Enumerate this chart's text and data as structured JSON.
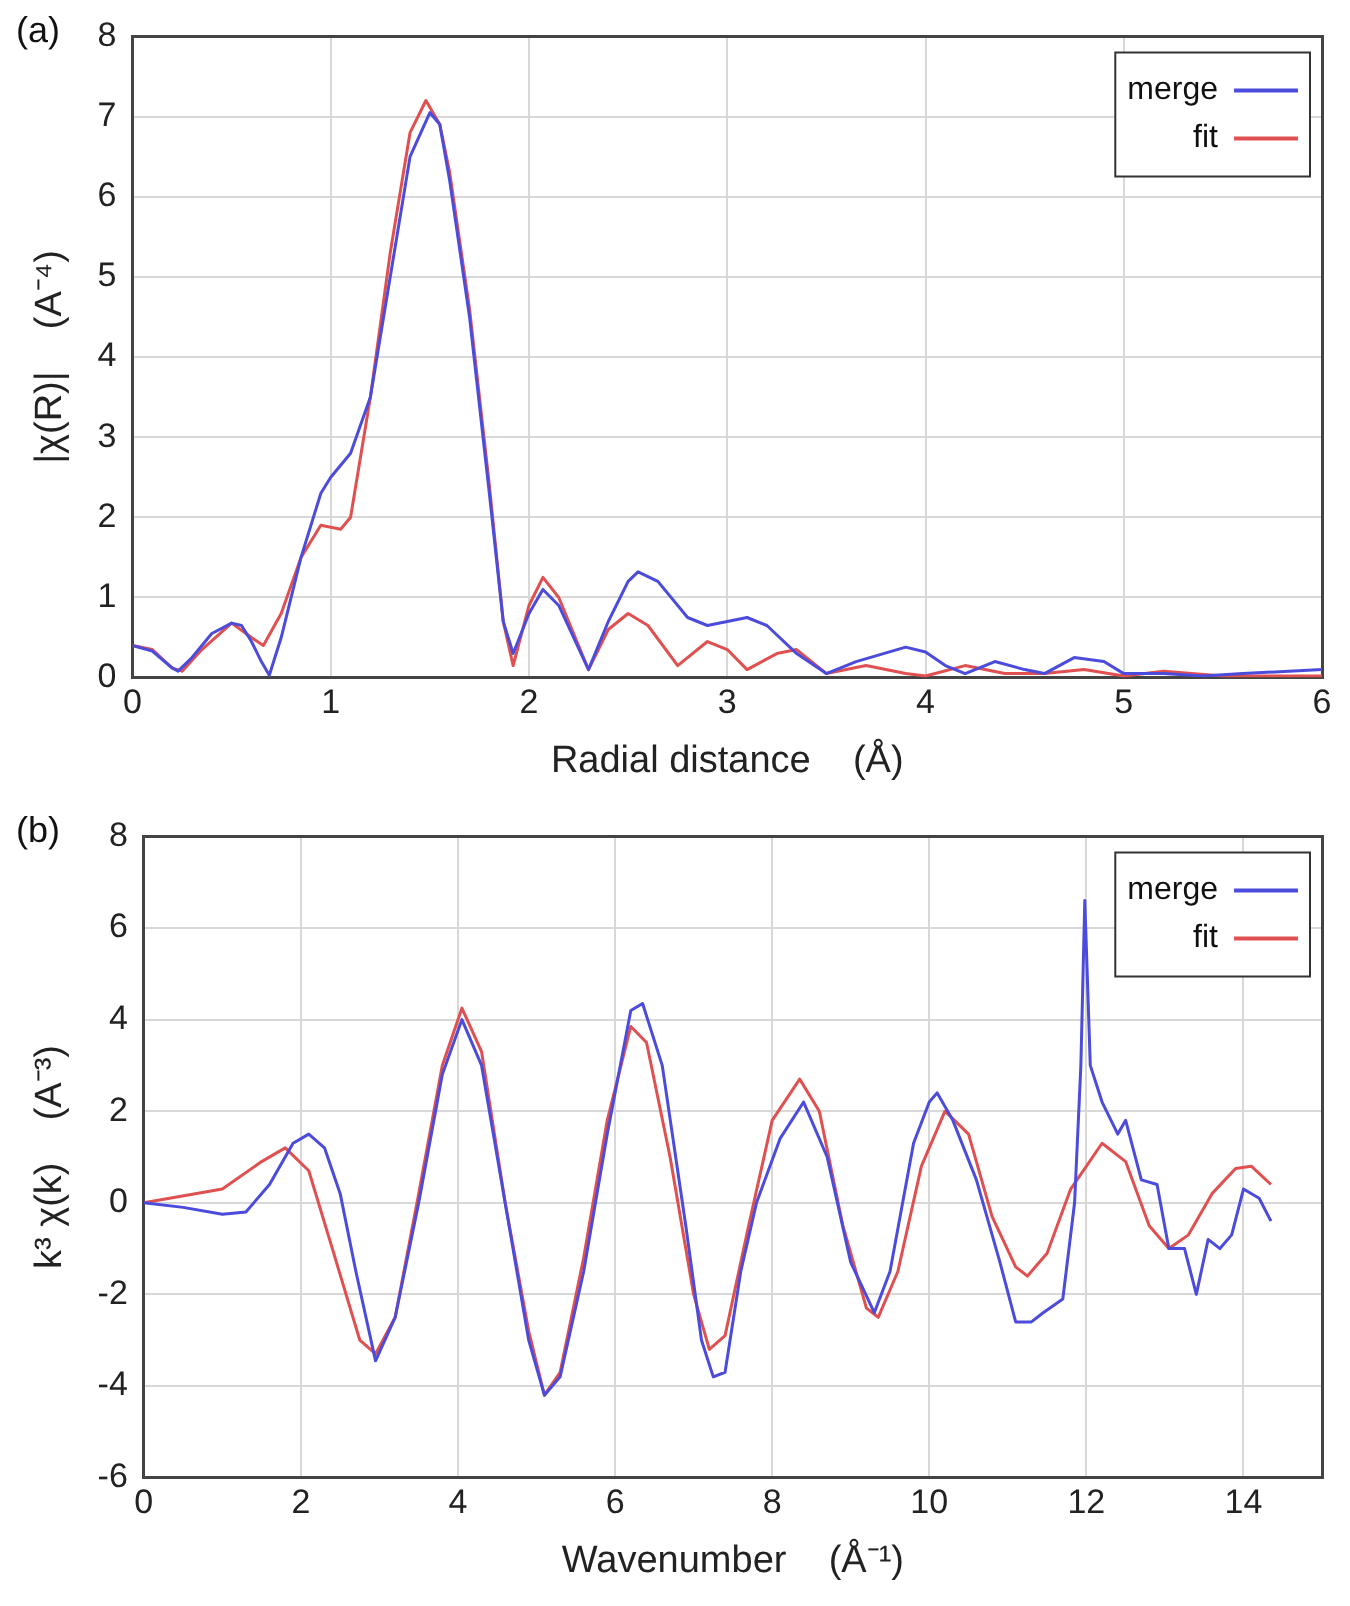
{
  "chart_data": [
    {
      "type": "line",
      "title": "(a)",
      "xlabel": "Radial distance    (Å)",
      "ylabel": "|χ(R)|    (A⁻⁴)",
      "xlim": [
        0,
        6
      ],
      "xticks": [
        0,
        1,
        2,
        3,
        4,
        5,
        6
      ],
      "ylim": [
        0,
        8
      ],
      "yticks": [
        0,
        1,
        2,
        3,
        4,
        5,
        6,
        7,
        8
      ],
      "grid": true,
      "legend": "top right",
      "marker": "none",
      "line_style": "solid",
      "series": [
        {
          "name": "merge",
          "color": "#4b4bdc",
          "x": [
            0,
            0.1,
            0.2,
            0.23,
            0.3,
            0.4,
            0.5,
            0.55,
            0.6,
            0.65,
            0.69,
            0.75,
            0.85,
            0.95,
            1.0,
            1.1,
            1.2,
            1.3,
            1.4,
            1.5,
            1.55,
            1.6,
            1.7,
            1.8,
            1.87,
            1.92,
            2.0,
            2.07,
            2.15,
            2.3,
            2.4,
            2.5,
            2.55,
            2.65,
            2.8,
            2.9,
            3.1,
            3.2,
            3.35,
            3.5,
            3.65,
            3.9,
            4.0,
            4.1,
            4.2,
            4.35,
            4.5,
            4.6,
            4.75,
            4.9,
            5.0,
            5.2,
            5.4,
            5.6,
            6.0
          ],
          "values": [
            0.4,
            0.33,
            0.12,
            0.08,
            0.25,
            0.55,
            0.68,
            0.65,
            0.45,
            0.2,
            0.03,
            0.5,
            1.5,
            2.3,
            2.5,
            2.8,
            3.5,
            5.0,
            6.5,
            7.05,
            6.9,
            6.2,
            4.5,
            2.3,
            0.7,
            0.3,
            0.8,
            1.1,
            0.9,
            0.1,
            0.7,
            1.2,
            1.32,
            1.2,
            0.75,
            0.65,
            0.75,
            0.65,
            0.3,
            0.05,
            0.2,
            0.38,
            0.32,
            0.15,
            0.05,
            0.2,
            0.1,
            0.05,
            0.25,
            0.2,
            0.05,
            0.05,
            0.02,
            0.05,
            0.1
          ]
        },
        {
          "name": "fit",
          "color": "#e05050",
          "x": [
            0,
            0.1,
            0.2,
            0.25,
            0.35,
            0.5,
            0.6,
            0.66,
            0.75,
            0.85,
            0.95,
            1.05,
            1.1,
            1.2,
            1.3,
            1.4,
            1.48,
            1.55,
            1.6,
            1.7,
            1.8,
            1.87,
            1.92,
            2.0,
            2.07,
            2.15,
            2.3,
            2.4,
            2.5,
            2.6,
            2.75,
            2.9,
            3.0,
            3.1,
            3.25,
            3.35,
            3.5,
            3.7,
            3.9,
            4.0,
            4.2,
            4.4,
            4.6,
            4.8,
            5.0,
            5.2,
            5.5,
            6.0
          ],
          "values": [
            0.4,
            0.35,
            0.12,
            0.08,
            0.35,
            0.68,
            0.5,
            0.4,
            0.8,
            1.5,
            1.9,
            1.85,
            2.0,
            3.5,
            5.3,
            6.8,
            7.2,
            6.9,
            6.3,
            4.6,
            2.4,
            0.7,
            0.15,
            0.9,
            1.25,
            1.0,
            0.1,
            0.6,
            0.8,
            0.65,
            0.15,
            0.45,
            0.35,
            0.1,
            0.3,
            0.35,
            0.05,
            0.15,
            0.05,
            0.02,
            0.15,
            0.05,
            0.05,
            0.1,
            0.02,
            0.08,
            0.02,
            0.02
          ]
        }
      ]
    },
    {
      "type": "line",
      "title": "(b)",
      "xlabel": "Wavenumber    (Å⁻¹)",
      "ylabel": "k³ χ(k)    (A⁻³)",
      "xlim": [
        0,
        15
      ],
      "xticks": [
        0,
        2,
        4,
        6,
        8,
        10,
        12,
        14
      ],
      "ylim": [
        -6,
        8
      ],
      "yticks": [
        -6,
        -4,
        -2,
        0,
        2,
        4,
        6,
        8
      ],
      "grid": true,
      "legend": "top right",
      "marker": "none",
      "line_style": "solid",
      "series": [
        {
          "name": "merge",
          "color": "#4b4bdc",
          "x": [
            0,
            0.5,
            1.0,
            1.3,
            1.6,
            1.9,
            2.1,
            2.3,
            2.5,
            2.7,
            2.95,
            3.2,
            3.5,
            3.8,
            4.05,
            4.3,
            4.6,
            4.9,
            5.1,
            5.3,
            5.6,
            5.9,
            6.2,
            6.35,
            6.6,
            6.9,
            7.1,
            7.25,
            7.4,
            7.6,
            7.8,
            8.1,
            8.4,
            8.7,
            9.0,
            9.3,
            9.5,
            9.8,
            10.0,
            10.1,
            10.3,
            10.6,
            10.9,
            11.1,
            11.3,
            11.45,
            11.7,
            11.85,
            11.93,
            11.98,
            12.05,
            12.2,
            12.4,
            12.5,
            12.7,
            12.9,
            13.05,
            13.25,
            13.4,
            13.55,
            13.7,
            13.85,
            14.0,
            14.2,
            14.35
          ],
          "values": [
            0,
            -0.1,
            -0.25,
            -0.2,
            0.4,
            1.3,
            1.5,
            1.2,
            0.2,
            -1.5,
            -3.45,
            -2.5,
            0,
            2.8,
            4.0,
            3.0,
            0,
            -3.0,
            -4.2,
            -3.8,
            -1.5,
            1.5,
            4.2,
            4.35,
            3.0,
            -0.5,
            -3.0,
            -3.8,
            -3.7,
            -1.5,
            0,
            1.4,
            2.2,
            1.0,
            -1.3,
            -2.4,
            -1.5,
            1.3,
            2.2,
            2.4,
            1.8,
            0.5,
            -1.3,
            -2.6,
            -2.6,
            -2.4,
            -2.1,
            0,
            3,
            6.6,
            3,
            2.2,
            1.5,
            1.8,
            0.5,
            0.4,
            -1.0,
            -1.0,
            -2.0,
            -0.8,
            -1.0,
            -0.7,
            0.3,
            0.1,
            -0.4
          ]
        },
        {
          "name": "fit",
          "color": "#e05050",
          "x": [
            0,
            1,
            1.5,
            1.8,
            2.1,
            2.4,
            2.75,
            2.95,
            3.2,
            3.5,
            3.8,
            4.05,
            4.3,
            4.6,
            4.9,
            5.1,
            5.3,
            5.6,
            5.9,
            6.2,
            6.4,
            6.7,
            7.0,
            7.2,
            7.4,
            7.7,
            8.0,
            8.35,
            8.6,
            8.9,
            9.2,
            9.35,
            9.6,
            9.9,
            10.2,
            10.5,
            10.8,
            11.1,
            11.25,
            11.5,
            11.8,
            12.2,
            12.5,
            12.8,
            13.05,
            13.3,
            13.6,
            13.9,
            14.1,
            14.35
          ],
          "values": [
            0,
            0.3,
            0.9,
            1.2,
            0.7,
            -1.0,
            -3.0,
            -3.3,
            -2.5,
            0.2,
            3.0,
            4.25,
            3.3,
            0,
            -2.8,
            -4.2,
            -3.7,
            -1.2,
            1.8,
            3.85,
            3.5,
            1.0,
            -2.0,
            -3.2,
            -2.9,
            -0.5,
            1.8,
            2.7,
            2.0,
            -0.5,
            -2.3,
            -2.5,
            -1.5,
            0.8,
            2.0,
            1.5,
            -0.3,
            -1.4,
            -1.6,
            -1.1,
            0.3,
            1.3,
            0.9,
            -0.5,
            -1.0,
            -0.7,
            0.2,
            0.75,
            0.8,
            0.4
          ]
        }
      ]
    }
  ]
}
